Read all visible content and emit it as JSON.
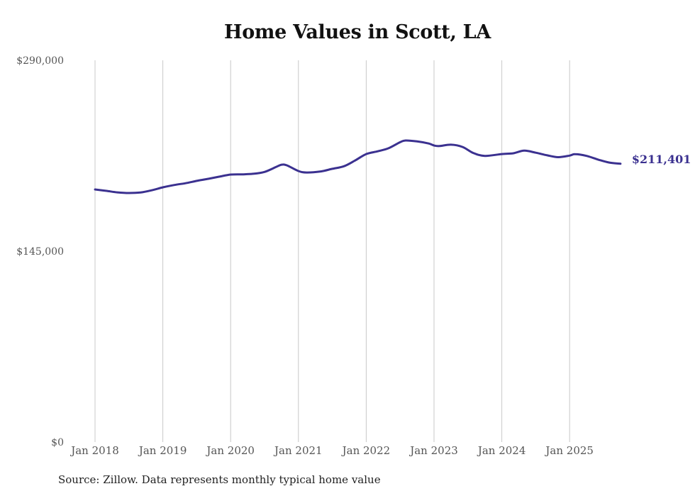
{
  "chart_data": {
    "type": "line",
    "title": "Home Values in Scott, LA",
    "xlabel": "",
    "ylabel": "",
    "ylim": [
      0,
      290000
    ],
    "yticks": [
      {
        "value": 0,
        "label": "$0"
      },
      {
        "value": 145000,
        "label": "$145,000"
      },
      {
        "value": 290000,
        "label": "$290,000"
      }
    ],
    "xticks": [
      {
        "value": 2018.0,
        "label": "Jan 2018"
      },
      {
        "value": 2019.0,
        "label": "Jan 2019"
      },
      {
        "value": 2020.0,
        "label": "Jan 2020"
      },
      {
        "value": 2021.0,
        "label": "Jan 2021"
      },
      {
        "value": 2022.0,
        "label": "Jan 2022"
      },
      {
        "value": 2023.0,
        "label": "Jan 2023"
      },
      {
        "value": 2024.0,
        "label": "Jan 2024"
      },
      {
        "value": 2025.0,
        "label": "Jan 2025"
      }
    ],
    "xlim": [
      2018.0,
      2025.75
    ],
    "grid": "vertical",
    "series": [
      {
        "name": "Typical home value",
        "color": "#3b3190",
        "x": [
          2018.0,
          2018.17,
          2018.33,
          2018.5,
          2018.67,
          2018.83,
          2019.0,
          2019.17,
          2019.33,
          2019.5,
          2019.67,
          2019.83,
          2020.0,
          2020.17,
          2020.33,
          2020.5,
          2020.67,
          2020.75,
          2020.83,
          2021.0,
          2021.12,
          2021.33,
          2021.5,
          2021.67,
          2021.83,
          2022.0,
          2022.17,
          2022.33,
          2022.5,
          2022.58,
          2022.75,
          2022.92,
          2023.0,
          2023.08,
          2023.25,
          2023.42,
          2023.58,
          2023.75,
          2024.0,
          2024.17,
          2024.33,
          2024.5,
          2024.67,
          2024.83,
          2025.0,
          2025.08,
          2025.25,
          2025.42,
          2025.58,
          2025.75
        ],
        "values": [
          191900,
          190800,
          189700,
          189200,
          189600,
          191200,
          193500,
          195300,
          196600,
          198400,
          200000,
          201600,
          203200,
          203400,
          203800,
          205200,
          209000,
          210700,
          210200,
          205900,
          204800,
          205600,
          207600,
          209500,
          213700,
          218800,
          220900,
          223200,
          227800,
          229100,
          228400,
          226800,
          225300,
          224900,
          225900,
          224200,
          219600,
          217400,
          218800,
          219400,
          221400,
          219800,
          217800,
          216400,
          217600,
          218700,
          217400,
          214600,
          212400,
          211401
        ]
      }
    ],
    "annotations": [
      {
        "text": "$211,401",
        "target": "last-point"
      }
    ]
  },
  "source_note": "Source: Zillow. Data represents monthly typical home value"
}
